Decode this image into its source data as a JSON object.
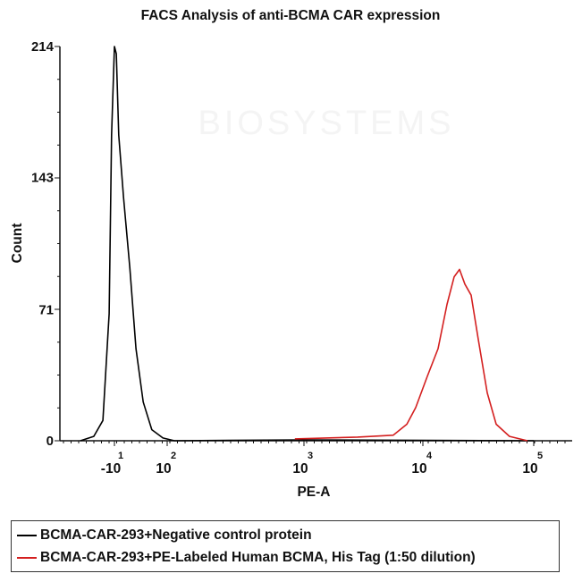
{
  "chart_data": {
    "type": "line",
    "title": "FACS Analysis of anti-BCMA CAR expression",
    "xlabel": "PE-A",
    "ylabel": "Count",
    "x_scale": "biexponential",
    "xlim": [
      -85,
      200000
    ],
    "ylim": [
      0,
      214
    ],
    "y_ticks": [
      0,
      71,
      143,
      214
    ],
    "x_ticks": [
      {
        "value": -10,
        "base": "-10",
        "exp": "1"
      },
      {
        "value": 100,
        "base": "10",
        "exp": "2"
      },
      {
        "value": 1000,
        "base": "10",
        "exp": "3"
      },
      {
        "value": 10000,
        "base": "10",
        "exp": "4"
      },
      {
        "value": 100000,
        "base": "10",
        "exp": "5"
      }
    ],
    "grid": false,
    "legend_placement": "bottom",
    "series": [
      {
        "name": "BCMA-CAR-293+Negative control protein",
        "color": "#000000",
        "x": [
          -81,
          -53,
          -34,
          -21,
          -16,
          -10,
          -6,
          -1,
          9,
          22,
          35,
          50,
          68,
          91,
          113,
          1000,
          100000
        ],
        "y": [
          0,
          2.4,
          11,
          69,
          166,
          214,
          210,
          166,
          132,
          94,
          50,
          21,
          6,
          1.5,
          0,
          0.5,
          0
        ]
      },
      {
        "name": "BCMA-CAR-293+PE-Labeled Human BCMA, His Tag (1:50 dilution)",
        "color": "#d42020",
        "x": [
          858,
          2825,
          5640,
          7330,
          8700,
          10970,
          13710,
          16510,
          19160,
          21400,
          23930,
          27250,
          31620,
          38070,
          45840,
          60500,
          87800
        ],
        "y": [
          1,
          2,
          3,
          9,
          18,
          35,
          50,
          74,
          89,
          93,
          85,
          79,
          55,
          26,
          9,
          2.4,
          0
        ]
      }
    ]
  },
  "watermark": "Acro BIOSYSTEMS"
}
